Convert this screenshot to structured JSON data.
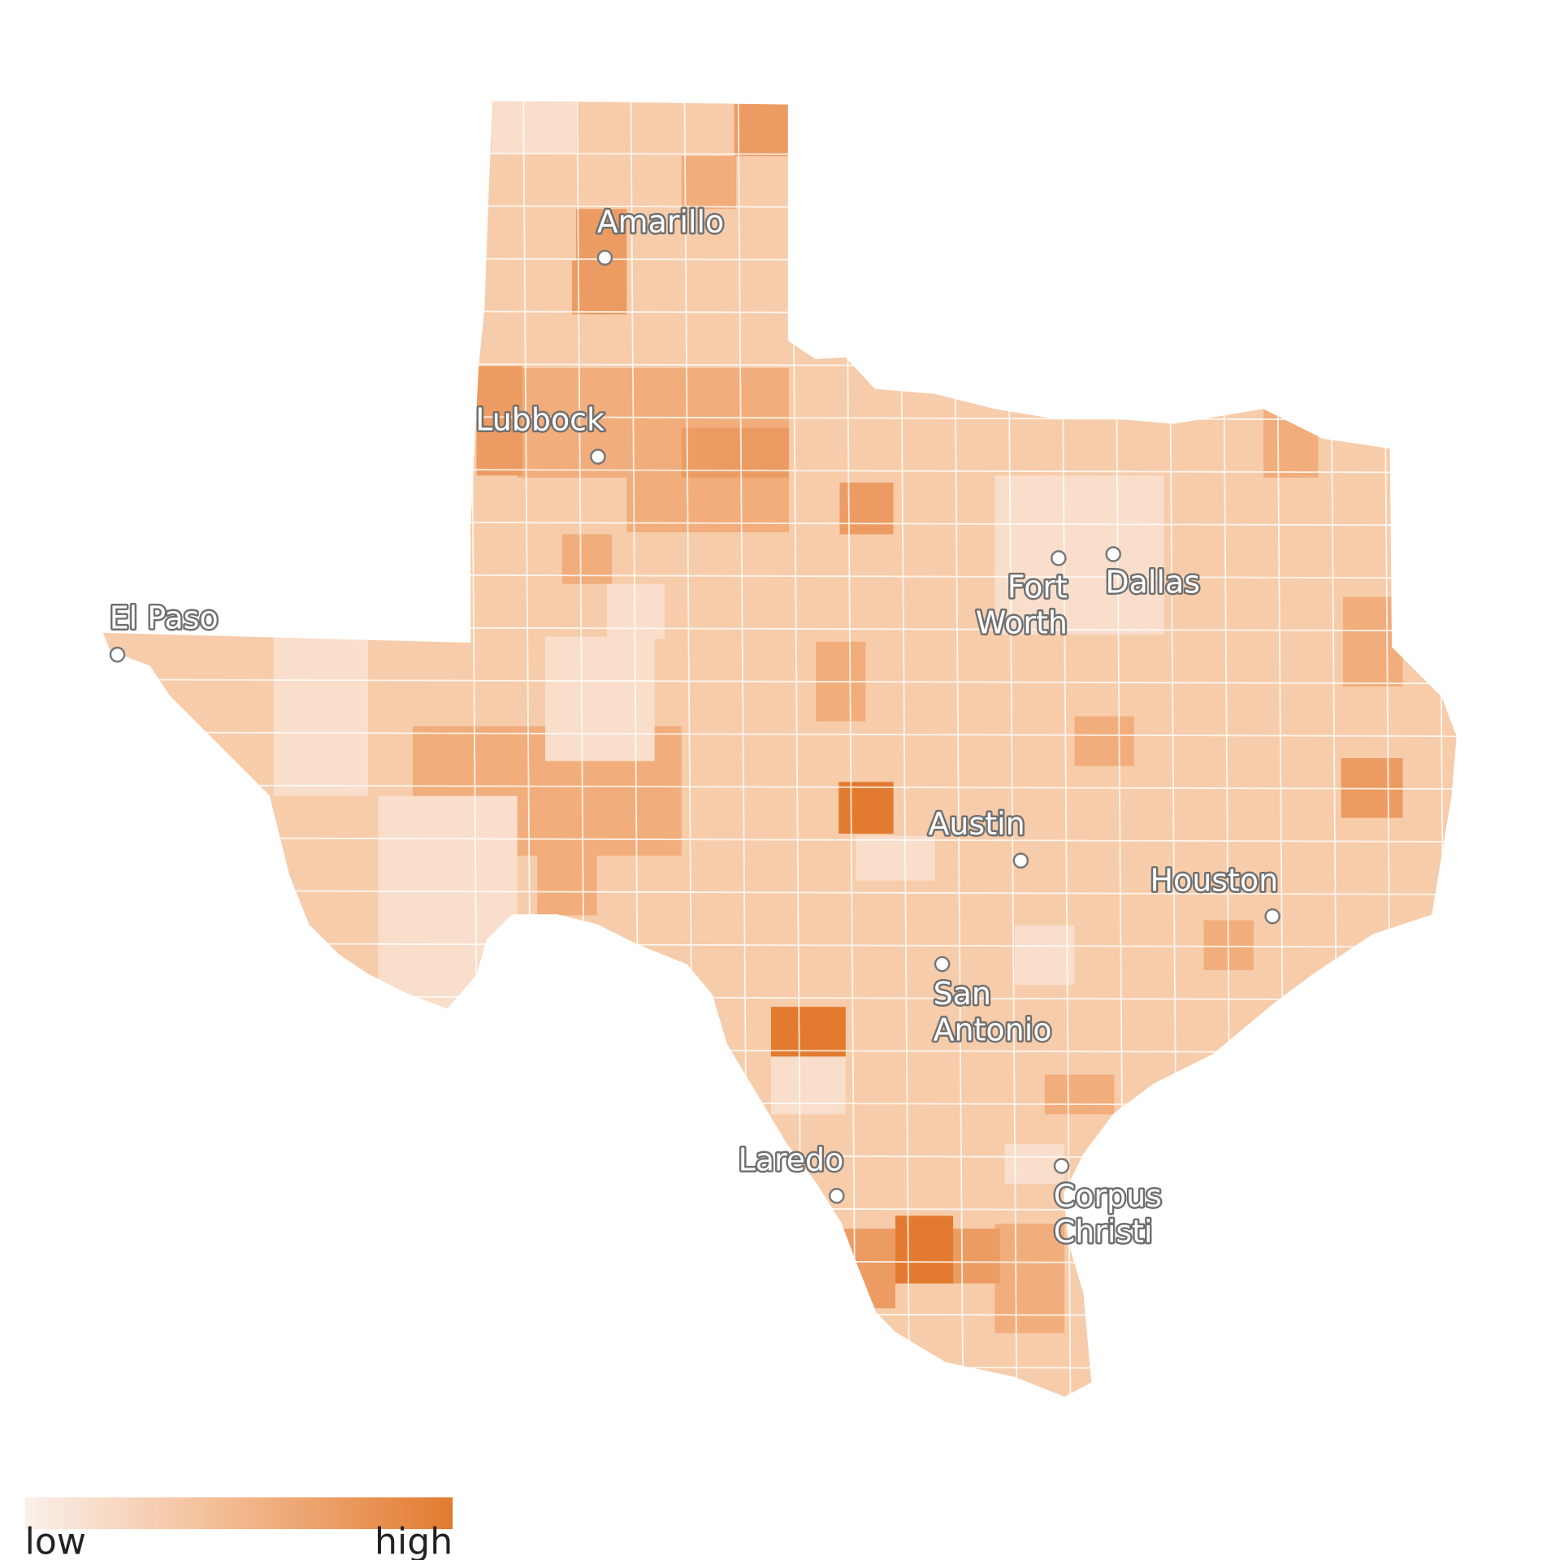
{
  "cities": [
    {
      "lines": [
        "El Paso"
      ]
    },
    {
      "lines": [
        "Amarillo"
      ]
    },
    {
      "lines": [
        "Lubbock"
      ]
    },
    {
      "lines": [
        "Fort",
        "Worth"
      ]
    },
    {
      "lines": [
        "Dallas"
      ]
    },
    {
      "lines": [
        "Austin"
      ]
    },
    {
      "lines": [
        "Houston"
      ]
    },
    {
      "lines": [
        "San",
        "Antonio"
      ]
    },
    {
      "lines": [
        "Laredo"
      ]
    },
    {
      "lines": [
        "Corpus",
        "Christi"
      ]
    }
  ],
  "legend": {
    "low": "low",
    "high": "high"
  }
}
